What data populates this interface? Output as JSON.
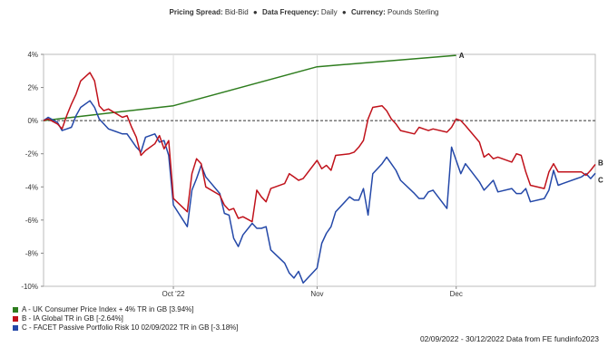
{
  "header": {
    "spread_label": "Pricing Spread:",
    "spread_value": "Bid-Bid",
    "frequency_label": "Data Frequency:",
    "frequency_value": "Daily",
    "currency_label": "Currency:",
    "currency_value": "Pounds Sterling",
    "bullet": "●"
  },
  "footer": "02/09/2022 - 30/12/2022 Data from FE fundinfo2023",
  "legend": [
    {
      "label": "A - UK Consumer Price Index + 4% TR in GB [3.94%]",
      "color": "#2e7d1e"
    },
    {
      "label": "B - IA Global TR in GB [-2.64%]",
      "color": "#c0121b"
    },
    {
      "label": "C - FACET Passive Portfolio Risk 10 02/09/2022 TR in GB [-3.18%]",
      "color": "#2448a8"
    }
  ],
  "chart_data": {
    "type": "line",
    "x_start": "2022-09-02",
    "x_end": "2022-12-30",
    "ylim": [
      -10,
      4
    ],
    "yticks": [
      4,
      2,
      0,
      -2,
      -4,
      -6,
      -8,
      -10
    ],
    "ytick_labels": [
      "4%",
      "2%",
      "0%",
      "-2%",
      "-4%",
      "-6%",
      "-8%",
      "-10%"
    ],
    "xticks": [
      {
        "date": "2022-09-30",
        "label": "Oct '22"
      },
      {
        "date": "2022-10-31",
        "label": "Nov"
      },
      {
        "date": "2022-11-30",
        "label": "Dec"
      }
    ],
    "zero_line": "dashed",
    "series": [
      {
        "name": "A - UK Consumer Price Index + 4% TR in GB",
        "end_label": "A",
        "color": "#2e7d1e",
        "points": [
          [
            "2022-09-02",
            0
          ],
          [
            "2022-09-30",
            0.9
          ],
          [
            "2022-10-31",
            3.25
          ],
          [
            "2022-11-30",
            3.94
          ]
        ]
      },
      {
        "name": "B - IA Global TR in GB",
        "end_label": "B",
        "color": "#c0121b",
        "points": [
          [
            "2022-09-02",
            0
          ],
          [
            "2022-09-03",
            0.1
          ],
          [
            "2022-09-05",
            -0.2
          ],
          [
            "2022-09-06",
            -0.5
          ],
          [
            "2022-09-07",
            0.3
          ],
          [
            "2022-09-08",
            1.0
          ],
          [
            "2022-09-09",
            1.6
          ],
          [
            "2022-09-10",
            2.4
          ],
          [
            "2022-09-12",
            2.9
          ],
          [
            "2022-09-13",
            2.4
          ],
          [
            "2022-09-14",
            0.9
          ],
          [
            "2022-09-15",
            0.6
          ],
          [
            "2022-09-16",
            0.7
          ],
          [
            "2022-09-19",
            0.2
          ],
          [
            "2022-09-20",
            0.3
          ],
          [
            "2022-09-21",
            -0.4
          ],
          [
            "2022-09-22",
            -1.0
          ],
          [
            "2022-09-23",
            -2.1
          ],
          [
            "2022-09-24",
            -1.8
          ],
          [
            "2022-09-26",
            -1.4
          ],
          [
            "2022-09-27",
            -0.9
          ],
          [
            "2022-09-28",
            -1.7
          ],
          [
            "2022-09-29",
            -1.2
          ],
          [
            "2022-09-30",
            -4.7
          ],
          [
            "2022-10-03",
            -5.5
          ],
          [
            "2022-10-04",
            -3.2
          ],
          [
            "2022-10-05",
            -2.3
          ],
          [
            "2022-10-06",
            -2.6
          ],
          [
            "2022-10-07",
            -4.0
          ],
          [
            "2022-10-10",
            -4.5
          ],
          [
            "2022-10-11",
            -5.1
          ],
          [
            "2022-10-12",
            -5.4
          ],
          [
            "2022-10-13",
            -5.3
          ],
          [
            "2022-10-14",
            -5.9
          ],
          [
            "2022-10-15",
            -5.8
          ],
          [
            "2022-10-17",
            -6.1
          ],
          [
            "2022-10-18",
            -4.2
          ],
          [
            "2022-10-19",
            -4.6
          ],
          [
            "2022-10-20",
            -4.9
          ],
          [
            "2022-10-21",
            -4.1
          ],
          [
            "2022-10-24",
            -3.8
          ],
          [
            "2022-10-25",
            -3.2
          ],
          [
            "2022-10-26",
            -3.4
          ],
          [
            "2022-10-27",
            -3.6
          ],
          [
            "2022-10-28",
            -3.5
          ],
          [
            "2022-10-31",
            -2.4
          ],
          [
            "2022-11-01",
            -2.9
          ],
          [
            "2022-11-02",
            -2.7
          ],
          [
            "2022-11-03",
            -3.0
          ],
          [
            "2022-11-04",
            -2.1
          ],
          [
            "2022-11-07",
            -2.0
          ],
          [
            "2022-11-08",
            -1.9
          ],
          [
            "2022-11-09",
            -1.6
          ],
          [
            "2022-11-10",
            -1.2
          ],
          [
            "2022-11-11",
            0.1
          ],
          [
            "2022-11-12",
            0.8
          ],
          [
            "2022-11-14",
            0.9
          ],
          [
            "2022-11-15",
            0.6
          ],
          [
            "2022-11-16",
            0.1
          ],
          [
            "2022-11-17",
            -0.2
          ],
          [
            "2022-11-18",
            -0.6
          ],
          [
            "2022-11-21",
            -0.8
          ],
          [
            "2022-11-22",
            -0.4
          ],
          [
            "2022-11-23",
            -0.5
          ],
          [
            "2022-11-24",
            -0.6
          ],
          [
            "2022-11-25",
            -0.5
          ],
          [
            "2022-11-28",
            -0.7
          ],
          [
            "2022-11-29",
            -0.4
          ],
          [
            "2022-11-30",
            0.1
          ],
          [
            "2022-12-01",
            0.0
          ],
          [
            "2022-12-02",
            -0.3
          ],
          [
            "2022-12-05",
            -1.3
          ],
          [
            "2022-12-06",
            -2.2
          ],
          [
            "2022-12-07",
            -2.0
          ],
          [
            "2022-12-08",
            -2.3
          ],
          [
            "2022-12-09",
            -2.2
          ],
          [
            "2022-12-12",
            -2.5
          ],
          [
            "2022-12-13",
            -2.0
          ],
          [
            "2022-12-14",
            -2.1
          ],
          [
            "2022-12-15",
            -3.1
          ],
          [
            "2022-12-16",
            -3.9
          ],
          [
            "2022-12-19",
            -4.1
          ],
          [
            "2022-12-20",
            -3.1
          ],
          [
            "2022-12-21",
            -2.6
          ],
          [
            "2022-12-22",
            -3.1
          ],
          [
            "2022-12-23",
            -3.1
          ],
          [
            "2022-12-27",
            -3.1
          ],
          [
            "2022-12-28",
            -3.3
          ],
          [
            "2022-12-29",
            -3.0
          ],
          [
            "2022-12-30",
            -2.64
          ]
        ]
      },
      {
        "name": "C - FACET Passive Portfolio Risk 10 02/09/2022 TR in GB",
        "end_label": "C",
        "color": "#2448a8",
        "points": [
          [
            "2022-09-02",
            0
          ],
          [
            "2022-09-03",
            0.2
          ],
          [
            "2022-09-05",
            -0.1
          ],
          [
            "2022-09-06",
            -0.6
          ],
          [
            "2022-09-07",
            -0.5
          ],
          [
            "2022-09-08",
            -0.4
          ],
          [
            "2022-09-09",
            0.3
          ],
          [
            "2022-09-10",
            0.8
          ],
          [
            "2022-09-12",
            1.2
          ],
          [
            "2022-09-13",
            0.8
          ],
          [
            "2022-09-14",
            0.1
          ],
          [
            "2022-09-15",
            -0.2
          ],
          [
            "2022-09-16",
            -0.5
          ],
          [
            "2022-09-19",
            -0.8
          ],
          [
            "2022-09-20",
            -0.8
          ],
          [
            "2022-09-21",
            -1.2
          ],
          [
            "2022-09-22",
            -1.6
          ],
          [
            "2022-09-23",
            -1.9
          ],
          [
            "2022-09-24",
            -1.0
          ],
          [
            "2022-09-26",
            -0.8
          ],
          [
            "2022-09-27",
            -1.3
          ],
          [
            "2022-09-28",
            -1.2
          ],
          [
            "2022-09-29",
            -2.1
          ],
          [
            "2022-09-30",
            -5.1
          ],
          [
            "2022-10-03",
            -6.4
          ],
          [
            "2022-10-04",
            -4.2
          ],
          [
            "2022-10-05",
            -3.5
          ],
          [
            "2022-10-06",
            -2.7
          ],
          [
            "2022-10-07",
            -3.4
          ],
          [
            "2022-10-10",
            -4.4
          ],
          [
            "2022-10-11",
            -5.6
          ],
          [
            "2022-10-12",
            -5.7
          ],
          [
            "2022-10-13",
            -7.1
          ],
          [
            "2022-10-14",
            -7.6
          ],
          [
            "2022-10-15",
            -6.9
          ],
          [
            "2022-10-17",
            -6.2
          ],
          [
            "2022-10-18",
            -6.5
          ],
          [
            "2022-10-19",
            -6.5
          ],
          [
            "2022-10-20",
            -6.4
          ],
          [
            "2022-10-21",
            -7.8
          ],
          [
            "2022-10-24",
            -8.6
          ],
          [
            "2022-10-25",
            -9.2
          ],
          [
            "2022-10-26",
            -9.5
          ],
          [
            "2022-10-27",
            -9.1
          ],
          [
            "2022-10-28",
            -9.8
          ],
          [
            "2022-10-31",
            -8.9
          ],
          [
            "2022-11-01",
            -7.4
          ],
          [
            "2022-11-02",
            -6.8
          ],
          [
            "2022-11-03",
            -6.4
          ],
          [
            "2022-11-04",
            -5.5
          ],
          [
            "2022-11-07",
            -4.6
          ],
          [
            "2022-11-08",
            -4.8
          ],
          [
            "2022-11-09",
            -4.8
          ],
          [
            "2022-11-10",
            -4.1
          ],
          [
            "2022-11-11",
            -5.7
          ],
          [
            "2022-11-12",
            -3.2
          ],
          [
            "2022-11-14",
            -2.6
          ],
          [
            "2022-11-15",
            -2.2
          ],
          [
            "2022-11-16",
            -2.6
          ],
          [
            "2022-11-17",
            -3.0
          ],
          [
            "2022-11-18",
            -3.6
          ],
          [
            "2022-11-21",
            -4.4
          ],
          [
            "2022-11-22",
            -4.7
          ],
          [
            "2022-11-23",
            -4.7
          ],
          [
            "2022-11-24",
            -4.3
          ],
          [
            "2022-11-25",
            -4.2
          ],
          [
            "2022-11-28",
            -5.3
          ],
          [
            "2022-11-29",
            -1.6
          ],
          [
            "2022-11-30",
            -2.4
          ],
          [
            "2022-12-01",
            -3.2
          ],
          [
            "2022-12-02",
            -2.6
          ],
          [
            "2022-12-05",
            -3.7
          ],
          [
            "2022-12-06",
            -4.2
          ],
          [
            "2022-12-07",
            -3.9
          ],
          [
            "2022-12-08",
            -3.6
          ],
          [
            "2022-12-09",
            -4.3
          ],
          [
            "2022-12-12",
            -4.1
          ],
          [
            "2022-12-13",
            -4.4
          ],
          [
            "2022-12-14",
            -4.4
          ],
          [
            "2022-12-15",
            -4.1
          ],
          [
            "2022-12-16",
            -4.9
          ],
          [
            "2022-12-19",
            -4.7
          ],
          [
            "2022-12-20",
            -4.2
          ],
          [
            "2022-12-21",
            -3.0
          ],
          [
            "2022-12-22",
            -3.9
          ],
          [
            "2022-12-23",
            -3.8
          ],
          [
            "2022-12-27",
            -3.4
          ],
          [
            "2022-12-28",
            -3.2
          ],
          [
            "2022-12-29",
            -3.5
          ],
          [
            "2022-12-30",
            -3.18
          ]
        ]
      }
    ]
  }
}
